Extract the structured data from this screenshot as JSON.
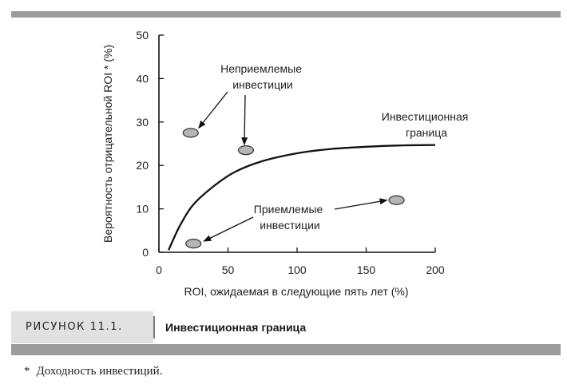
{
  "chart_data": {
    "type": "scatter",
    "xlabel": "ROI, ожидаемая в следующие пять лет (%)",
    "ylabel": "Вероятность отрицательной ROI * (%)",
    "xlim": [
      0,
      200
    ],
    "ylim": [
      0,
      50
    ],
    "xticks": [
      0,
      50,
      100,
      150,
      200
    ],
    "yticks": [
      0,
      10,
      20,
      30,
      40,
      50
    ],
    "grid": false,
    "series": [
      {
        "name": "Неприемлемые инвестиции",
        "points": [
          {
            "x": 23,
            "y": 27.5
          },
          {
            "x": 63,
            "y": 23.5
          }
        ]
      },
      {
        "name": "Приемлемые инвестиции",
        "points": [
          {
            "x": 25,
            "y": 2
          },
          {
            "x": 172,
            "y": 12
          }
        ]
      }
    ],
    "curve": {
      "name": "Инвестиционная граница",
      "points": [
        {
          "x": 7,
          "y": 0.5
        },
        {
          "x": 15,
          "y": 6
        },
        {
          "x": 25,
          "y": 11
        },
        {
          "x": 40,
          "y": 15.3
        },
        {
          "x": 55,
          "y": 18.5
        },
        {
          "x": 75,
          "y": 21
        },
        {
          "x": 100,
          "y": 22.8
        },
        {
          "x": 125,
          "y": 23.8
        },
        {
          "x": 150,
          "y": 24.3
        },
        {
          "x": 175,
          "y": 24.6
        },
        {
          "x": 200,
          "y": 24.7
        }
      ]
    },
    "annotations": {
      "unacceptable": [
        "Неприемлемые",
        "инвестиции"
      ],
      "acceptable": [
        "Приемлемые",
        "инвестиции"
      ],
      "frontier": [
        "Инвестиционная",
        "граница"
      ]
    },
    "colors": {
      "marker_fill": "#b5b5b5",
      "marker_stroke": "#333333",
      "line": "#111111"
    }
  },
  "caption": {
    "label": "РИСУНОК 11.1.",
    "title": "Инвестиционная граница"
  },
  "footnote": {
    "marker": "*",
    "text": "Доходность инвестиций."
  }
}
